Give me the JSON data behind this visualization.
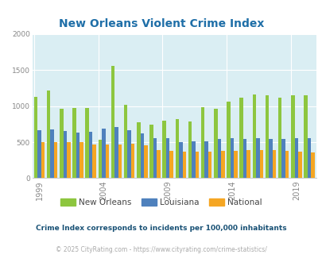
{
  "title": "New Orleans Violent Crime Index",
  "subtitle": "Crime Index corresponds to incidents per 100,000 inhabitants",
  "footer": "© 2025 CityRating.com - https://www.cityrating.com/crime-statistics/",
  "legend_labels": [
    "New Orleans",
    "Louisiana",
    "National"
  ],
  "bar_colors": [
    "#8dc63f",
    "#4f81bd",
    "#f5a623"
  ],
  "background_color": "#daeef3",
  "years": [
    1999,
    2000,
    2001,
    2002,
    2003,
    2004,
    2005,
    2006,
    2007,
    2008,
    2009,
    2010,
    2011,
    2012,
    2013,
    2014,
    2015,
    2016,
    2017,
    2018,
    2019,
    2020
  ],
  "new_orleans": [
    1130,
    1215,
    960,
    975,
    970,
    535,
    1560,
    1020,
    780,
    745,
    800,
    820,
    790,
    990,
    960,
    1060,
    1115,
    1160,
    1145,
    1120,
    1145,
    1150
  ],
  "louisiana": [
    670,
    680,
    655,
    635,
    640,
    685,
    705,
    670,
    620,
    555,
    555,
    505,
    510,
    510,
    545,
    555,
    545,
    550,
    545,
    540,
    555,
    560
  ],
  "national": [
    505,
    505,
    500,
    495,
    470,
    470,
    465,
    475,
    455,
    395,
    375,
    370,
    370,
    370,
    380,
    375,
    385,
    395,
    390,
    375,
    370,
    360
  ],
  "ylim": [
    0,
    2000
  ],
  "yticks": [
    0,
    500,
    1000,
    1500,
    2000
  ],
  "xtick_years": [
    1999,
    2004,
    2009,
    2014,
    2019
  ],
  "title_color": "#1f6fa8",
  "tick_color": "#888888",
  "subtitle_color": "#1a5276",
  "footer_color": "#aaaaaa",
  "grid_color": "#ffffff"
}
